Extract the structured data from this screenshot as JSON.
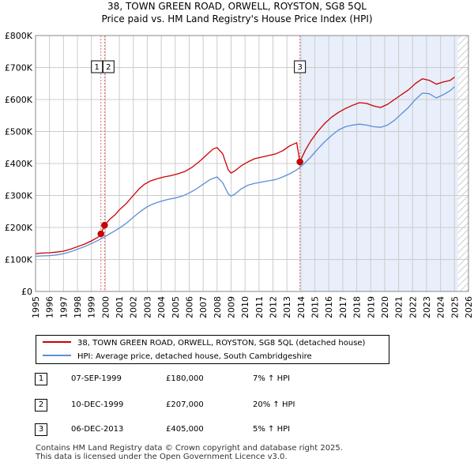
{
  "title": {
    "line1": "38, TOWN GREEN ROAD, ORWELL, ROYSTON, SG8 5QL",
    "line2": "Price paid vs. HM Land Registry's House Price Index (HPI)"
  },
  "colors": {
    "price_line": "#cc0000",
    "hpi_line": "#5b8ed6",
    "shade": "#e8eefa",
    "vline": "#e06666",
    "hatch": "#bbbbbb"
  },
  "chart_data": {
    "type": "line",
    "xlim": [
      1995,
      2026
    ],
    "ylim": [
      0,
      800000
    ],
    "x_ticks": [
      "1995",
      "1996",
      "1997",
      "1998",
      "1999",
      "2000",
      "2001",
      "2002",
      "2003",
      "2004",
      "2005",
      "2006",
      "2007",
      "2008",
      "2009",
      "2010",
      "2011",
      "2012",
      "2013",
      "2014",
      "2015",
      "2016",
      "2017",
      "2018",
      "2019",
      "2020",
      "2021",
      "2022",
      "2023",
      "2024",
      "2025",
      "2026"
    ],
    "y_ticks": [
      {
        "value": 0,
        "label": "£0"
      },
      {
        "value": 100000,
        "label": "£100K"
      },
      {
        "value": 200000,
        "label": "£200K"
      },
      {
        "value": 300000,
        "label": "£300K"
      },
      {
        "value": 400000,
        "label": "£400K"
      },
      {
        "value": 500000,
        "label": "£500K"
      },
      {
        "value": 600000,
        "label": "£600K"
      },
      {
        "value": 700000,
        "label": "£700K"
      },
      {
        "value": 800000,
        "label": "£800K"
      }
    ],
    "grid": true,
    "shaded_ranges": [
      [
        2013.93,
        2025.25
      ]
    ],
    "hatched_from": 2025.25,
    "series": [
      {
        "name": "38, TOWN GREEN ROAD, ORWELL, ROYSTON, SG8 5QL (detached house)",
        "x": [
          1995.0,
          1995.5,
          1996.0,
          1996.5,
          1997.0,
          1997.5,
          1998.0,
          1998.5,
          1999.0,
          1999.5,
          1999.68,
          1999.94,
          2000.3,
          2000.7,
          2001.0,
          2001.5,
          2002.0,
          2002.4,
          2002.8,
          2003.2,
          2003.7,
          2004.2,
          2004.7,
          2005.2,
          2005.7,
          2006.2,
          2006.7,
          2007.2,
          2007.7,
          2008.0,
          2008.4,
          2008.8,
          2009.0,
          2009.3,
          2009.7,
          2010.2,
          2010.7,
          2011.2,
          2011.7,
          2012.2,
          2012.7,
          2013.2,
          2013.7,
          2013.93,
          2014.3,
          2014.7,
          2015.2,
          2015.7,
          2016.2,
          2016.7,
          2017.2,
          2017.7,
          2018.2,
          2018.7,
          2019.2,
          2019.7,
          2020.2,
          2020.7,
          2021.2,
          2021.7,
          2022.2,
          2022.7,
          2023.2,
          2023.7,
          2024.2,
          2024.7,
          2025.0
        ],
        "values": [
          118000,
          120000,
          121000,
          123000,
          126000,
          132000,
          140000,
          148000,
          158000,
          170000,
          180000,
          207000,
          225000,
          240000,
          255000,
          275000,
          300000,
          320000,
          335000,
          345000,
          352000,
          358000,
          362000,
          368000,
          375000,
          388000,
          405000,
          425000,
          445000,
          450000,
          430000,
          380000,
          370000,
          378000,
          392000,
          405000,
          415000,
          420000,
          425000,
          430000,
          440000,
          455000,
          465000,
          405000,
          440000,
          470000,
          500000,
          525000,
          545000,
          560000,
          572000,
          582000,
          590000,
          588000,
          580000,
          575000,
          585000,
          600000,
          615000,
          630000,
          650000,
          665000,
          660000,
          648000,
          655000,
          660000,
          670000
        ]
      },
      {
        "name": "HPI: Average price, detached house, South Cambridgeshire",
        "x": [
          1995.0,
          1995.5,
          1996.0,
          1996.5,
          1997.0,
          1997.5,
          1998.0,
          1998.5,
          1999.0,
          1999.5,
          2000.0,
          2000.5,
          2001.0,
          2001.5,
          2002.0,
          2002.5,
          2003.0,
          2003.5,
          2004.0,
          2004.5,
          2005.0,
          2005.5,
          2006.0,
          2006.5,
          2007.0,
          2007.5,
          2008.0,
          2008.4,
          2008.8,
          2009.0,
          2009.3,
          2009.7,
          2010.2,
          2010.7,
          2011.2,
          2011.7,
          2012.2,
          2012.7,
          2013.2,
          2013.7,
          2014.2,
          2014.7,
          2015.2,
          2015.7,
          2016.2,
          2016.7,
          2017.2,
          2017.7,
          2018.2,
          2018.7,
          2019.2,
          2019.7,
          2020.2,
          2020.7,
          2021.2,
          2021.7,
          2022.2,
          2022.7,
          2023.2,
          2023.7,
          2024.2,
          2024.7,
          2025.0
        ],
        "values": [
          110000,
          111000,
          112000,
          114000,
          118000,
          124000,
          132000,
          140000,
          150000,
          160000,
          172000,
          185000,
          198000,
          213000,
          232000,
          250000,
          265000,
          275000,
          282000,
          288000,
          292000,
          298000,
          308000,
          320000,
          335000,
          350000,
          358000,
          340000,
          305000,
          298000,
          305000,
          320000,
          332000,
          338000,
          342000,
          346000,
          350000,
          358000,
          368000,
          380000,
          398000,
          420000,
          445000,
          468000,
          488000,
          505000,
          515000,
          520000,
          523000,
          520000,
          515000,
          513000,
          520000,
          535000,
          555000,
          575000,
          600000,
          620000,
          618000,
          605000,
          615000,
          628000,
          640000
        ]
      }
    ],
    "sales": [
      {
        "label": "1",
        "x": 1999.68,
        "value": 180000
      },
      {
        "label": "2",
        "x": 1999.94,
        "value": 207000
      },
      {
        "label": "3",
        "x": 2013.93,
        "value": 405000
      }
    ]
  },
  "legend": {
    "price_label": "38, TOWN GREEN ROAD, ORWELL, ROYSTON, SG8 5QL (detached house)",
    "hpi_label": "HPI: Average price, detached house, South Cambridgeshire"
  },
  "sales_table": [
    {
      "num": "1",
      "date": "07-SEP-1999",
      "price": "£180,000",
      "hpi": "7% ↑ HPI"
    },
    {
      "num": "2",
      "date": "10-DEC-1999",
      "price": "£207,000",
      "hpi": "20% ↑ HPI"
    },
    {
      "num": "3",
      "date": "06-DEC-2013",
      "price": "£405,000",
      "hpi": "5% ↑ HPI"
    }
  ],
  "footer": {
    "line1": "Contains HM Land Registry data © Crown copyright and database right 2025.",
    "line2": "This data is licensed under the Open Government Licence v3.0."
  }
}
